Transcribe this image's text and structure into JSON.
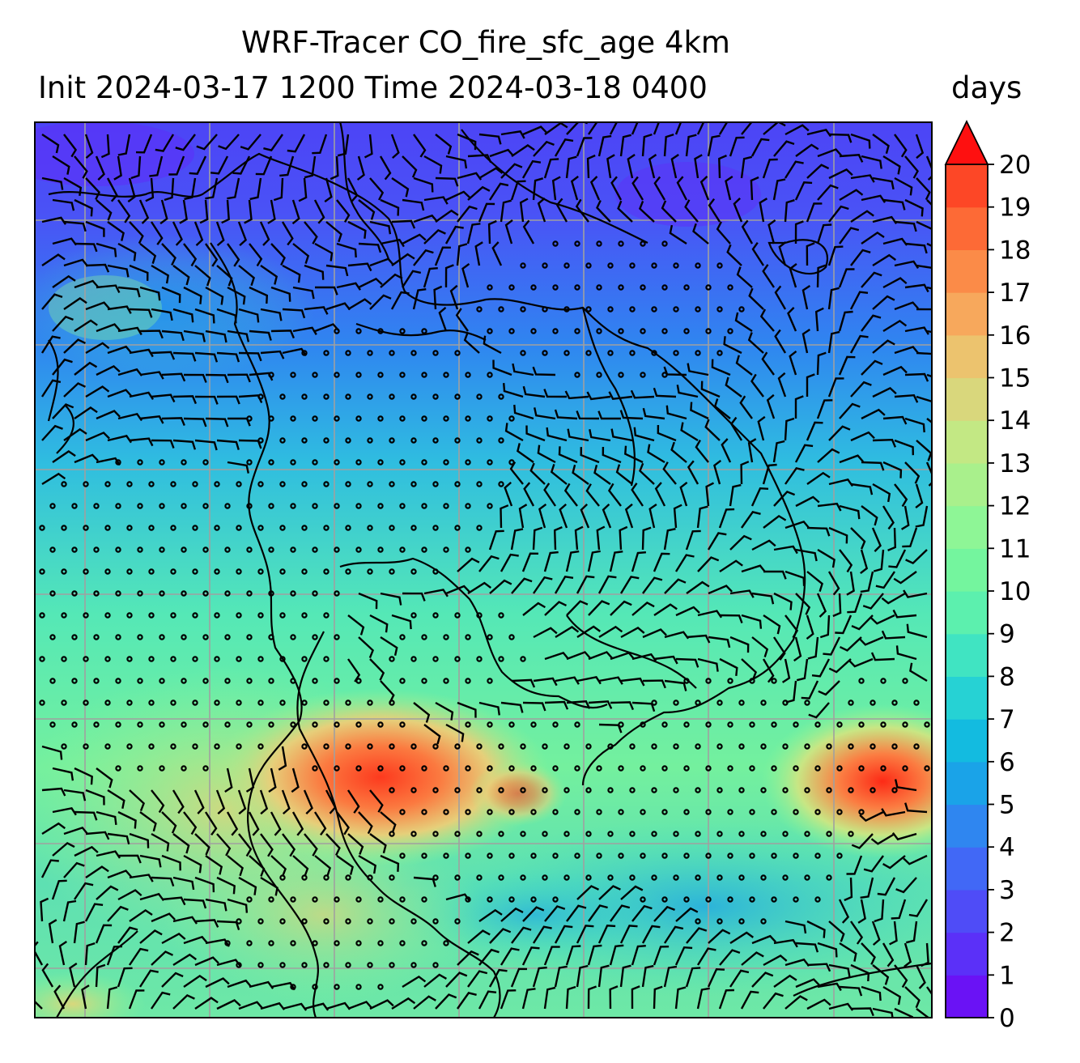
{
  "title": {
    "line1": "WRF-Tracer CO_fire_sfc_age 4km",
    "line2": "Init 2024-03-17 1200 Time 2024-03-18 0400"
  },
  "colorbar": {
    "units": "days",
    "min": 0,
    "max": 20,
    "extend": "max",
    "tick_labels": [
      "0",
      "1",
      "2",
      "3",
      "4",
      "5",
      "6",
      "7",
      "8",
      "9",
      "10",
      "11",
      "12",
      "13",
      "14",
      "15",
      "16",
      "17",
      "18",
      "19",
      "20"
    ],
    "colors": [
      "#6a12f5",
      "#5b30f8",
      "#4f4cf7",
      "#4168f6",
      "#2f86f0",
      "#1aa3e8",
      "#13bbe0",
      "#26d2d4",
      "#40e4c2",
      "#5cf0ae",
      "#74f59e",
      "#8ef696",
      "#a9f08c",
      "#c3e884",
      "#d9d77c",
      "#ecc36e",
      "#f7a85c",
      "#fb8b48",
      "#fd6a36",
      "#fd4726",
      "#fe1c12"
    ],
    "extend_color": "#fe1010"
  },
  "map": {
    "gridlines": true,
    "grid_color": "#a0a0a0",
    "barb_color": "#000000",
    "coastline_color": "#000000"
  }
}
